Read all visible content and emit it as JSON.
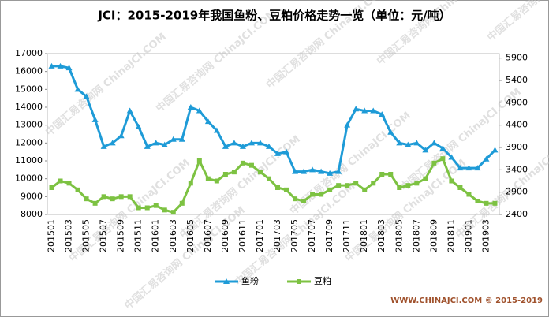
{
  "chart_data": {
    "type": "line",
    "title": "JCI：2015-2019年我国鱼粉、豆粕价格走势一览（单位：元/吨）",
    "watermark": "中国汇易咨询网 ChinaJCI.COM",
    "footer": "WWW.CHINAJCI.COM © 2015-2019",
    "categories": [
      "201501",
      null,
      "201503",
      null,
      "201505",
      null,
      "201507",
      null,
      "201509",
      null,
      "201511",
      null,
      "201601",
      null,
      "201603",
      null,
      "201605",
      null,
      "201607",
      null,
      "201609",
      null,
      "201611",
      null,
      "201701",
      null,
      "201703",
      null,
      "201705",
      null,
      "201707",
      null,
      "201709",
      null,
      "201711",
      null,
      "201801",
      null,
      "201803",
      null,
      "201805",
      null,
      "201807",
      null,
      "201809",
      null,
      "201811",
      null,
      "201901",
      null,
      "201903",
      null
    ],
    "series": [
      {
        "name": "鱼粉",
        "color": "#1e9bd7",
        "marker": "triangle",
        "values": [
          16300,
          16300,
          16200,
          15000,
          14600,
          13300,
          11800,
          12000,
          12400,
          13800,
          12900,
          11800,
          12000,
          11900,
          12200,
          12200,
          14000,
          13800,
          13200,
          12700,
          11800,
          12000,
          11800,
          12000,
          12000,
          11800,
          11400,
          11500,
          10400,
          10400,
          10500,
          10400,
          10300,
          10400,
          13000,
          13900,
          13800,
          13800,
          13600,
          12600,
          12000,
          11900,
          12000,
          11600,
          12000,
          11700,
          11200,
          10600,
          10600,
          10600,
          11100,
          11600
        ]
      },
      {
        "name": "豆粕",
        "color": "#7dc242",
        "marker": "square",
        "axis": "y2",
        "values": [
          3000,
          3150,
          3100,
          2950,
          2750,
          2650,
          2800,
          2750,
          2800,
          2800,
          2550,
          2550,
          2600,
          2500,
          2450,
          2650,
          3100,
          3600,
          3200,
          3150,
          3300,
          3350,
          3550,
          3500,
          3350,
          3200,
          3000,
          2950,
          2750,
          2700,
          2850,
          2850,
          2950,
          3050,
          3050,
          3100,
          2950,
          3100,
          3300,
          3300,
          3000,
          3050,
          3100,
          3200,
          3550,
          3650,
          3150,
          3000,
          2850,
          2700,
          2650,
          2650
        ]
      }
    ],
    "ylim": [
      8000,
      17000
    ],
    "yticks": [
      8000,
      9000,
      10000,
      11000,
      12000,
      13000,
      14000,
      15000,
      16000,
      17000
    ],
    "y2lim": [
      2400,
      6000
    ],
    "y2ticks": [
      2400,
      2900,
      3400,
      3900,
      4400,
      4900,
      5400,
      5900
    ],
    "grid": false,
    "legend": "bottom"
  }
}
